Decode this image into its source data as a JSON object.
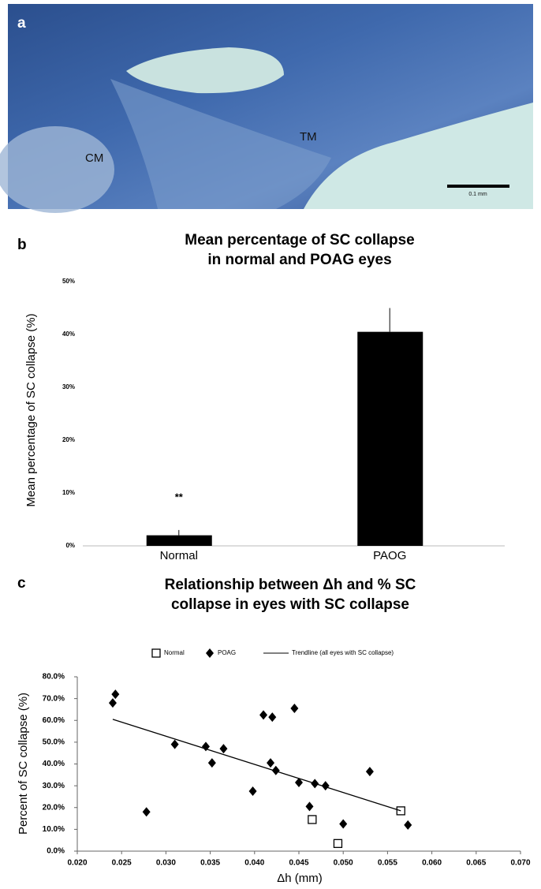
{
  "panel_a": {
    "label": "a",
    "annotations": [
      "CM",
      "TM"
    ],
    "scale_bar": "0.1 mm"
  },
  "chart_data": [
    {
      "type": "bar",
      "panel": "b",
      "title": [
        "Mean percentage of SC collapse",
        "in normal and POAG eyes"
      ],
      "y_label": "Mean percentage of SC collapse (%)",
      "categories": [
        "Normal",
        "PAOG"
      ],
      "values": [
        2,
        40.5
      ],
      "errors": [
        1,
        4.5
      ],
      "annotation": "**",
      "color": "#000000",
      "ylim": [
        0,
        50
      ],
      "yticks": [
        {
          "value": 0,
          "label": "0%"
        },
        {
          "value": 10,
          "label": "10%"
        },
        {
          "value": 20,
          "label": "20%"
        },
        {
          "value": 30,
          "label": "30%"
        },
        {
          "value": 40,
          "label": "40%"
        },
        {
          "value": 50,
          "label": "50%"
        }
      ]
    },
    {
      "type": "scatter",
      "panel": "c",
      "title": [
        "Relationship between Δh and % SC",
        "collapse in eyes with SC collapse"
      ],
      "x_label": "Δh (mm)",
      "y_label": "Percent of SC collapse (%)",
      "series": [
        {
          "name": "Normal",
          "color": "#000000",
          "marker": "square",
          "x": [
            0.0465,
            0.0494,
            0.0565
          ],
          "values": [
            14.5,
            3.5,
            18.5
          ]
        },
        {
          "name": "POAG",
          "color": "#000000",
          "marker": "diamond",
          "x": [
            0.024,
            0.0243,
            0.0278,
            0.031,
            0.0345,
            0.0352,
            0.0365,
            0.0398,
            0.041,
            0.042,
            0.0418,
            0.0424,
            0.0445,
            0.045,
            0.0462,
            0.0468,
            0.048,
            0.05,
            0.053,
            0.0573
          ],
          "values": [
            68,
            72,
            18,
            49,
            48,
            40.5,
            47,
            27.5,
            62.5,
            61.5,
            40.5,
            37,
            65.5,
            31.5,
            20.5,
            31,
            30,
            12.5,
            36.5,
            12
          ]
        },
        {
          "name": "Trendline (all eyes with SC collapse)",
          "color": "#000000",
          "marker": "line",
          "x": [
            0.024,
            0.0565
          ],
          "values": [
            60.5,
            18.5
          ]
        }
      ],
      "xlim": [
        0.02,
        0.07
      ],
      "xticks": [
        {
          "value": 0.02,
          "label": "0.020"
        },
        {
          "value": 0.025,
          "label": "0.025"
        },
        {
          "value": 0.03,
          "label": "0.030"
        },
        {
          "value": 0.035,
          "label": "0.035"
        },
        {
          "value": 0.04,
          "label": "0.040"
        },
        {
          "value": 0.045,
          "label": "0.045"
        },
        {
          "value": 0.05,
          "label": "0.050"
        },
        {
          "value": 0.055,
          "label": "0.055"
        },
        {
          "value": 0.06,
          "label": "0.060"
        },
        {
          "value": 0.065,
          "label": "0.065"
        },
        {
          "value": 0.07,
          "label": "0.070"
        }
      ],
      "ylim": [
        0,
        80
      ],
      "yticks": [
        {
          "value": 0,
          "label": "0.0%"
        },
        {
          "value": 10,
          "label": "10.0%"
        },
        {
          "value": 20,
          "label": "20.0%"
        },
        {
          "value": 30,
          "label": "30.0%"
        },
        {
          "value": 40,
          "label": "40.0%"
        },
        {
          "value": 50,
          "label": "50.0%"
        },
        {
          "value": 60,
          "label": "60.0%"
        },
        {
          "value": 70,
          "label": "70.0%"
        },
        {
          "value": 80,
          "label": "80.0%"
        }
      ]
    }
  ]
}
